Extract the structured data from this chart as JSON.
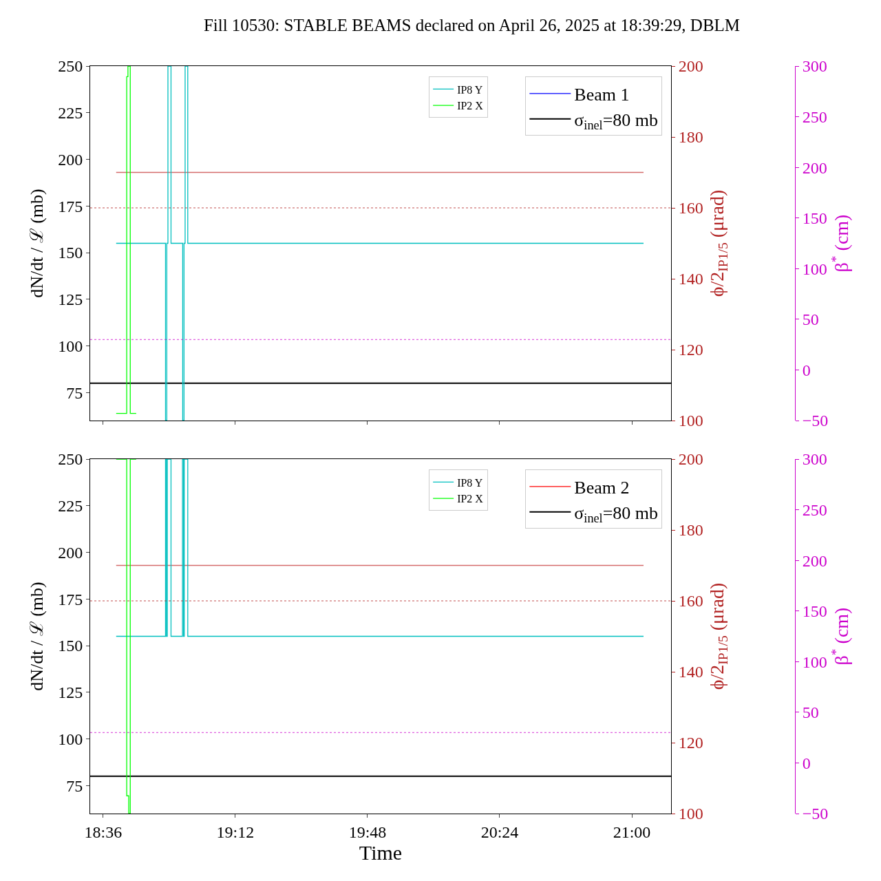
{
  "chart_data": [
    {
      "type": "step",
      "title": "Fill 10530: STABLE BEAMS declared on April 26, 2025 at 18:39:29, DBLM",
      "ylabel": "dN/dt / ℒ (mb)",
      "y2label": "ϕ/2$_{IP1/5}$ (μrad)",
      "y3label": "β$^{*}$ (cm)",
      "xlim": [
        18.541,
        21.178
      ],
      "xticks": [
        {
          "value": 18.6,
          "label": null
        },
        {
          "value": 19.2,
          "label": null
        },
        {
          "value": 19.8,
          "label": null
        },
        {
          "value": 20.4,
          "label": null
        },
        {
          "value": 21.0,
          "label": null
        }
      ],
      "ylim": [
        60,
        250
      ],
      "yticks": [
        75,
        100,
        125,
        150,
        175,
        200,
        225,
        250
      ],
      "y2lim": [
        100,
        200
      ],
      "y2ticks": [
        100,
        120,
        140,
        160,
        180,
        200
      ],
      "y3lim": [
        -50,
        300
      ],
      "y3ticks": [
        -50,
        0,
        50,
        100,
        150,
        200,
        250,
        300
      ],
      "tick_labels": "y",
      "legend": "top right",
      "series": [
        {
          "name": "Beam 1",
          "type": "line",
          "color": "#0000ff"
        },
        {
          "type": "line",
          "axis": "y2",
          "color": "#d46a6a",
          "x": [
            18.659,
            21.053
          ],
          "values": [
            170,
            170
          ]
        },
        {
          "name": "IP8 Y",
          "type": "step",
          "axis": "y2",
          "color": "#00bfbf",
          "x": [
            18.659,
            18.883,
            18.889,
            18.894,
            18.908,
            18.961,
            18.967,
            18.972,
            18.984,
            21.053
          ],
          "values": [
            150,
            100,
            150,
            200,
            150,
            100,
            150,
            200,
            150,
            150
          ]
        },
        {
          "name": "IP2 X",
          "type": "step",
          "axis": "y2",
          "color": "#00ff00",
          "x": [
            18.659,
            18.707,
            18.7125,
            18.723,
            18.75
          ],
          "values": [
            102,
            197,
            200,
            102,
            102
          ]
        }
      ],
      "ref_lines": [
        {
          "axis": "y",
          "value": 80,
          "label": "σ$_{inel}$=80 mb",
          "color": "#000000",
          "line_style": "solid"
        },
        {
          "axis": "y2",
          "value": 160,
          "color": "#b22222",
          "line_style": "dotted"
        },
        {
          "axis": "y3",
          "value": 30,
          "color": "#cc00cc",
          "line_style": "dotted"
        }
      ]
    },
    {
      "type": "step",
      "xlabel": "Time",
      "ylabel": "dN/dt / ℒ (mb)",
      "y2label": "ϕ/2$_{IP1/5}$ (μrad)",
      "y3label": "β$^{*}$ (cm)",
      "xlim": [
        18.541,
        21.178
      ],
      "xticks": [
        {
          "value": 18.6,
          "label": "18:36"
        },
        {
          "value": 19.2,
          "label": "19:12"
        },
        {
          "value": 19.8,
          "label": "19:48"
        },
        {
          "value": 20.4,
          "label": "20:24"
        },
        {
          "value": 21.0,
          "label": "21:00"
        }
      ],
      "ylim": [
        60,
        250
      ],
      "yticks": [
        75,
        100,
        125,
        150,
        175,
        200,
        225,
        250
      ],
      "y2lim": [
        100,
        200
      ],
      "y2ticks": [
        100,
        120,
        140,
        160,
        180,
        200
      ],
      "y3lim": [
        -50,
        300
      ],
      "y3ticks": [
        -50,
        0,
        50,
        100,
        150,
        200,
        250,
        300
      ],
      "legend": "top right",
      "series": [
        {
          "name": "Beam 2",
          "type": "line",
          "color": "#ff0000"
        },
        {
          "type": "line",
          "axis": "y2",
          "color": "#d46a6a",
          "x": [
            18.659,
            21.053
          ],
          "values": [
            170,
            170
          ]
        },
        {
          "name": "IP8 Y",
          "type": "step",
          "axis": "y2",
          "color": "#00bfbf",
          "x": [
            18.659,
            18.883,
            18.8875,
            18.891,
            18.908,
            18.96,
            18.965,
            18.968,
            18.984,
            21.053
          ],
          "values": [
            150,
            200,
            150,
            200,
            150,
            200,
            150,
            200,
            150,
            150
          ]
        },
        {
          "name": "IP2 X",
          "type": "step",
          "axis": "y2",
          "color": "#00ff00",
          "x": [
            18.659,
            18.707,
            18.716,
            18.723,
            18.75
          ],
          "values": [
            200,
            105,
            100,
            200,
            200
          ]
        }
      ],
      "ref_lines": [
        {
          "axis": "y",
          "value": 80,
          "label": "σ$_{inel}$=80 mb",
          "color": "#000000",
          "line_style": "solid"
        },
        {
          "axis": "y2",
          "value": 160,
          "color": "#b22222",
          "line_style": "dotted"
        },
        {
          "axis": "y3",
          "value": 30,
          "color": "#cc00cc",
          "line_style": "dotted"
        }
      ]
    }
  ]
}
